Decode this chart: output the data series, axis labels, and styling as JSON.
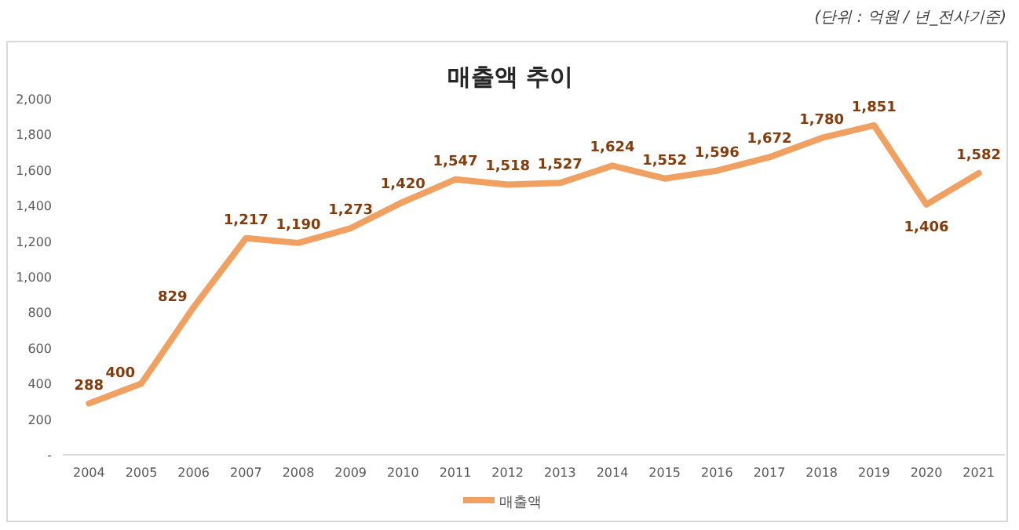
{
  "chart_data": {
    "type": "line",
    "title": "매출액 추이",
    "annotations": [
      "(단위 : 억원 / 년_전사기준)"
    ],
    "categories": [
      "2004",
      "2005",
      "2006",
      "2007",
      "2008",
      "2009",
      "2010",
      "2011",
      "2012",
      "2013",
      "2014",
      "2015",
      "2016",
      "2017",
      "2018",
      "2019",
      "2020",
      "2021"
    ],
    "series": [
      {
        "name": "매출액",
        "color": "#f0a060",
        "values": [
          288,
          400,
          829,
          1217,
          1190,
          1273,
          1420,
          1547,
          1518,
          1527,
          1624,
          1552,
          1596,
          1672,
          1780,
          1851,
          1406,
          1582
        ],
        "value_labels": [
          "288",
          "400",
          "829",
          "1,217",
          "1,190",
          "1,273",
          "1,420",
          "1,547",
          "1,518",
          "1,527",
          "1,624",
          "1,552",
          "1,596",
          "1,672",
          "1,780",
          "1,851",
          "1,406",
          "1,582"
        ]
      }
    ],
    "ylim": [
      0,
      2000
    ],
    "yticks": [
      {
        "value": 0,
        "label": "-"
      },
      200,
      400,
      600,
      800,
      {
        "value": 1000,
        "label": "1,000"
      },
      {
        "value": 1200,
        "label": "1,200"
      },
      {
        "value": 1400,
        "label": "1,400"
      },
      {
        "value": 1600,
        "label": "1,600"
      },
      {
        "value": 1800,
        "label": "1,800"
      },
      {
        "value": 2000,
        "label": "2,000"
      }
    ],
    "grid": false,
    "legend": "bottom",
    "marker": "none",
    "line_style": "solid"
  }
}
